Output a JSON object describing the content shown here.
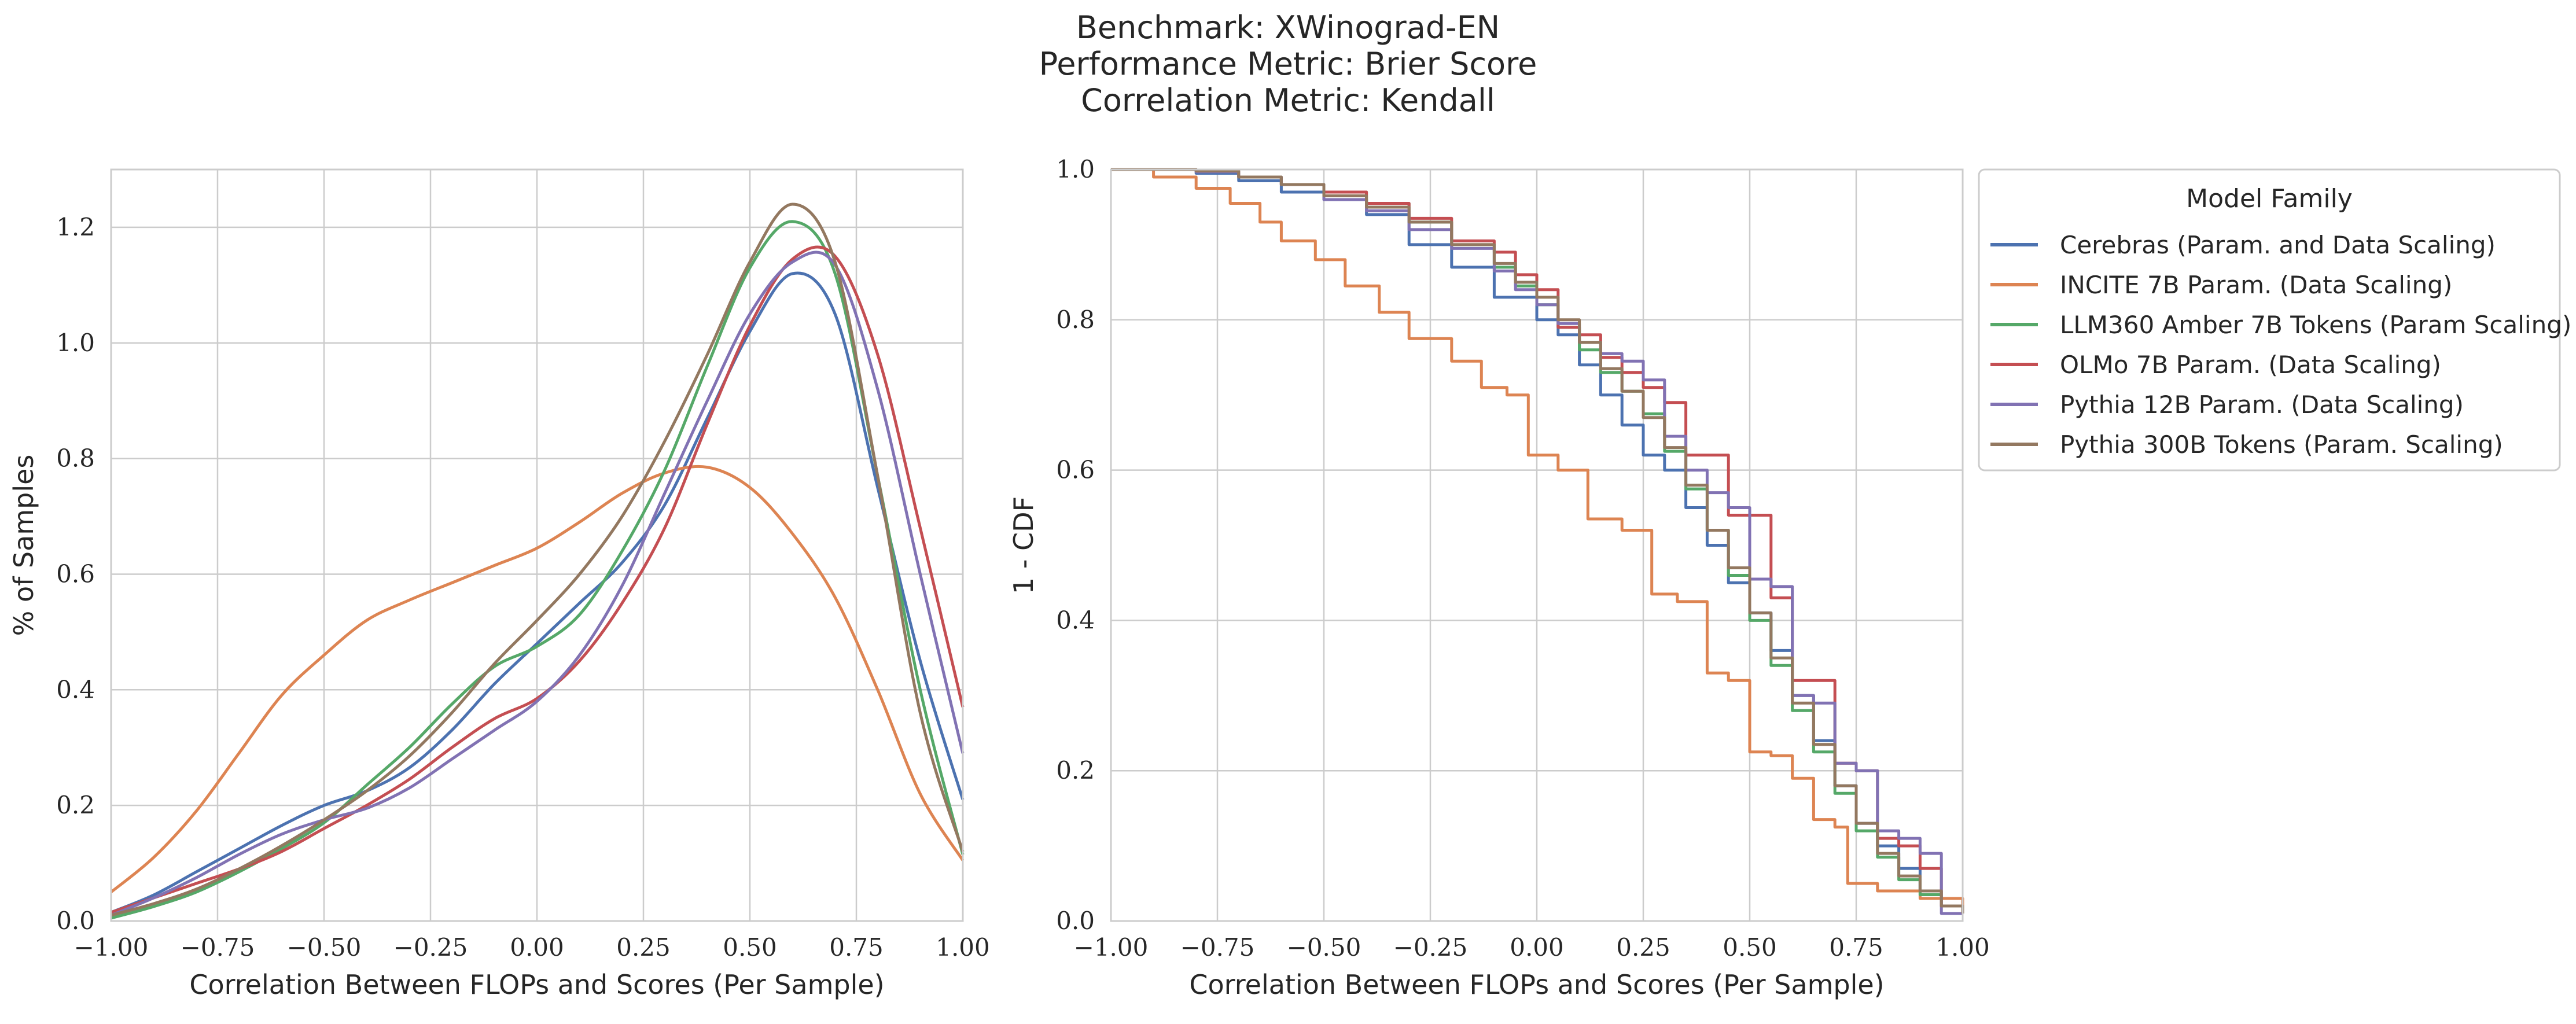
{
  "title_lines": [
    "Benchmark: XWinograd-EN",
    "Performance Metric: Brier Score",
    "Correlation Metric: Kendall"
  ],
  "legend": {
    "title": "Model Family",
    "entries": [
      {
        "label": "Cerebras (Param. and Data Scaling)",
        "color": "#4c72b0"
      },
      {
        "label": "INCITE 7B Param. (Data Scaling)",
        "color": "#dd8452"
      },
      {
        "label": "LLM360 Amber 7B Tokens (Param Scaling)",
        "color": "#55a868"
      },
      {
        "label": "OLMo 7B Param. (Data Scaling)",
        "color": "#c44e52"
      },
      {
        "label": "Pythia 12B Param. (Data Scaling)",
        "color": "#8172b3"
      },
      {
        "label": "Pythia 300B Tokens (Param. Scaling)",
        "color": "#937860"
      }
    ]
  },
  "chart_data": [
    {
      "type": "line",
      "xlabel": "Correlation Between FLOPs and Scores (Per Sample)",
      "ylabel": "% of Samples",
      "xlim": [
        -1.0,
        1.0
      ],
      "ylim": [
        0.0,
        1.3
      ],
      "xticks": [
        -1.0,
        -0.75,
        -0.5,
        -0.25,
        0.0,
        0.25,
        0.5,
        0.75,
        1.0
      ],
      "xtick_labels": [
        "−1.00",
        "−0.75",
        "−0.50",
        "−0.25",
        "0.00",
        "0.25",
        "0.50",
        "0.75",
        "1.00"
      ],
      "yticks": [
        0.0,
        0.2,
        0.4,
        0.6,
        0.8,
        1.0,
        1.2
      ],
      "ytick_labels": [
        "0.0",
        "0.2",
        "0.4",
        "0.6",
        "0.8",
        "1.0",
        "1.2"
      ],
      "grid": true,
      "x": [
        -1.0,
        -0.9,
        -0.8,
        -0.7,
        -0.6,
        -0.5,
        -0.4,
        -0.3,
        -0.2,
        -0.1,
        0.0,
        0.1,
        0.2,
        0.3,
        0.4,
        0.5,
        0.6,
        0.7,
        0.8,
        0.9,
        1.0
      ],
      "series": [
        {
          "name": "Cerebras (Param. and Data Scaling)",
          "color": "#4c72b0",
          "values": [
            0.015,
            0.045,
            0.085,
            0.125,
            0.165,
            0.2,
            0.225,
            0.265,
            0.33,
            0.41,
            0.48,
            0.55,
            0.62,
            0.72,
            0.87,
            1.02,
            1.12,
            1.05,
            0.75,
            0.45,
            0.21
          ]
        },
        {
          "name": "INCITE 7B Param. (Data Scaling)",
          "color": "#dd8452",
          "values": [
            0.05,
            0.11,
            0.19,
            0.29,
            0.39,
            0.46,
            0.52,
            0.555,
            0.585,
            0.615,
            0.645,
            0.69,
            0.74,
            0.775,
            0.785,
            0.75,
            0.67,
            0.56,
            0.4,
            0.22,
            0.105
          ]
        },
        {
          "name": "LLM360 Amber 7B Tokens (Param Scaling)",
          "color": "#55a868",
          "values": [
            0.005,
            0.025,
            0.05,
            0.085,
            0.125,
            0.17,
            0.235,
            0.3,
            0.375,
            0.44,
            0.475,
            0.53,
            0.64,
            0.78,
            0.96,
            1.13,
            1.21,
            1.12,
            0.77,
            0.4,
            0.115
          ]
        },
        {
          "name": "OLMo 7B Param. (Data Scaling)",
          "color": "#c44e52",
          "values": [
            0.015,
            0.04,
            0.065,
            0.09,
            0.12,
            0.16,
            0.2,
            0.245,
            0.3,
            0.35,
            0.385,
            0.45,
            0.55,
            0.68,
            0.86,
            1.03,
            1.145,
            1.15,
            0.98,
            0.68,
            0.37
          ]
        },
        {
          "name": "Pythia 12B Param. (Data Scaling)",
          "color": "#8172b3",
          "values": [
            0.01,
            0.04,
            0.075,
            0.115,
            0.15,
            0.175,
            0.195,
            0.23,
            0.28,
            0.33,
            0.38,
            0.46,
            0.58,
            0.74,
            0.9,
            1.05,
            1.14,
            1.135,
            0.92,
            0.6,
            0.29
          ]
        },
        {
          "name": "Pythia 300B Tokens (Param. Scaling)",
          "color": "#937860",
          "values": [
            0.01,
            0.03,
            0.055,
            0.09,
            0.13,
            0.175,
            0.225,
            0.285,
            0.36,
            0.445,
            0.52,
            0.6,
            0.7,
            0.83,
            0.98,
            1.14,
            1.24,
            1.14,
            0.77,
            0.36,
            0.12
          ]
        }
      ]
    },
    {
      "type": "line",
      "step": true,
      "xlabel": "Correlation Between FLOPs and Scores (Per Sample)",
      "ylabel": "1 - CDF",
      "xlim": [
        -1.0,
        1.0
      ],
      "ylim": [
        0.0,
        1.0
      ],
      "xticks": [
        -1.0,
        -0.75,
        -0.5,
        -0.25,
        0.0,
        0.25,
        0.5,
        0.75,
        1.0
      ],
      "xtick_labels": [
        "−1.00",
        "−0.75",
        "−0.50",
        "−0.25",
        "0.00",
        "0.25",
        "0.50",
        "0.75",
        "1.00"
      ],
      "yticks": [
        0.0,
        0.2,
        0.4,
        0.6,
        0.8,
        1.0
      ],
      "ytick_labels": [
        "0.0",
        "0.2",
        "0.4",
        "0.6",
        "0.8",
        "1.0"
      ],
      "grid": true,
      "legend_position": "outside-right-top",
      "series": [
        {
          "name": "Cerebras (Param. and Data Scaling)",
          "color": "#4c72b0",
          "x": [
            -1.0,
            -0.9,
            -0.8,
            -0.7,
            -0.6,
            -0.5,
            -0.4,
            -0.3,
            -0.2,
            -0.1,
            0.0,
            0.05,
            0.1,
            0.15,
            0.2,
            0.25,
            0.3,
            0.35,
            0.4,
            0.45,
            0.5,
            0.55,
            0.6,
            0.65,
            0.7,
            0.75,
            0.8,
            0.85,
            0.9,
            0.95,
            1.0
          ],
          "values": [
            1.0,
            1.0,
            0.995,
            0.985,
            0.97,
            0.96,
            0.94,
            0.9,
            0.87,
            0.83,
            0.8,
            0.78,
            0.74,
            0.7,
            0.66,
            0.62,
            0.6,
            0.55,
            0.5,
            0.45,
            0.41,
            0.36,
            0.3,
            0.24,
            0.18,
            0.13,
            0.1,
            0.07,
            0.04,
            0.02,
            0.02
          ]
        },
        {
          "name": "INCITE 7B Param. (Data Scaling)",
          "color": "#dd8452",
          "x": [
            -1.0,
            -0.9,
            -0.8,
            -0.72,
            -0.65,
            -0.6,
            -0.52,
            -0.45,
            -0.37,
            -0.3,
            -0.2,
            -0.13,
            -0.07,
            -0.02,
            0.05,
            0.12,
            0.2,
            0.27,
            0.33,
            0.4,
            0.45,
            0.5,
            0.55,
            0.6,
            0.65,
            0.7,
            0.73,
            0.77,
            0.8,
            0.85,
            0.9,
            1.0
          ],
          "values": [
            1.0,
            0.99,
            0.975,
            0.955,
            0.93,
            0.905,
            0.88,
            0.845,
            0.81,
            0.775,
            0.745,
            0.71,
            0.7,
            0.62,
            0.6,
            0.535,
            0.52,
            0.435,
            0.425,
            0.33,
            0.32,
            0.225,
            0.22,
            0.19,
            0.135,
            0.125,
            0.05,
            0.05,
            0.04,
            0.04,
            0.03,
            0.01
          ]
        },
        {
          "name": "LLM360 Amber 7B Tokens (Param Scaling)",
          "color": "#55a868",
          "x": [
            -1.0,
            -0.9,
            -0.8,
            -0.7,
            -0.6,
            -0.5,
            -0.4,
            -0.3,
            -0.2,
            -0.1,
            -0.05,
            0.0,
            0.05,
            0.1,
            0.15,
            0.2,
            0.25,
            0.3,
            0.35,
            0.4,
            0.45,
            0.5,
            0.55,
            0.6,
            0.65,
            0.7,
            0.75,
            0.8,
            0.85,
            0.9,
            0.95,
            1.0
          ],
          "values": [
            1.0,
            1.0,
            0.998,
            0.99,
            0.98,
            0.97,
            0.955,
            0.93,
            0.9,
            0.87,
            0.845,
            0.82,
            0.79,
            0.76,
            0.73,
            0.705,
            0.675,
            0.625,
            0.575,
            0.52,
            0.46,
            0.4,
            0.34,
            0.28,
            0.225,
            0.17,
            0.12,
            0.085,
            0.055,
            0.035,
            0.02,
            0.01
          ]
        },
        {
          "name": "OLMo 7B Param. (Data Scaling)",
          "color": "#c44e52",
          "x": [
            -1.0,
            -0.9,
            -0.8,
            -0.7,
            -0.6,
            -0.5,
            -0.4,
            -0.3,
            -0.2,
            -0.1,
            -0.05,
            0.0,
            0.05,
            0.1,
            0.15,
            0.2,
            0.25,
            0.3,
            0.35,
            0.4,
            0.45,
            0.5,
            0.55,
            0.6,
            0.65,
            0.7,
            0.75,
            0.8,
            0.85,
            0.9,
            0.95,
            1.0
          ],
          "values": [
            1.0,
            1.0,
            0.998,
            0.99,
            0.98,
            0.97,
            0.955,
            0.935,
            0.905,
            0.89,
            0.86,
            0.84,
            0.79,
            0.78,
            0.75,
            0.73,
            0.71,
            0.69,
            0.62,
            0.62,
            0.54,
            0.54,
            0.43,
            0.32,
            0.32,
            0.21,
            0.2,
            0.11,
            0.1,
            0.07,
            0.02,
            0.02
          ]
        },
        {
          "name": "Pythia 12B Param. (Data Scaling)",
          "color": "#8172b3",
          "x": [
            -1.0,
            -0.9,
            -0.8,
            -0.7,
            -0.6,
            -0.5,
            -0.4,
            -0.3,
            -0.2,
            -0.1,
            -0.05,
            0.0,
            0.05,
            0.1,
            0.15,
            0.2,
            0.25,
            0.3,
            0.35,
            0.4,
            0.45,
            0.5,
            0.55,
            0.6,
            0.65,
            0.7,
            0.75,
            0.8,
            0.85,
            0.9,
            0.95,
            1.0
          ],
          "values": [
            1.0,
            1.0,
            0.997,
            0.99,
            0.98,
            0.96,
            0.945,
            0.92,
            0.895,
            0.865,
            0.84,
            0.82,
            0.795,
            0.77,
            0.755,
            0.745,
            0.72,
            0.645,
            0.6,
            0.57,
            0.55,
            0.455,
            0.445,
            0.3,
            0.29,
            0.21,
            0.2,
            0.12,
            0.11,
            0.09,
            0.01,
            0.01
          ]
        },
        {
          "name": "Pythia 300B Tokens (Param. Scaling)",
          "color": "#937860",
          "x": [
            -1.0,
            -0.9,
            -0.8,
            -0.7,
            -0.6,
            -0.5,
            -0.4,
            -0.3,
            -0.2,
            -0.1,
            -0.05,
            0.0,
            0.05,
            0.1,
            0.15,
            0.2,
            0.25,
            0.3,
            0.35,
            0.4,
            0.45,
            0.5,
            0.55,
            0.6,
            0.65,
            0.7,
            0.75,
            0.8,
            0.85,
            0.9,
            0.95,
            1.0
          ],
          "values": [
            1.0,
            1.0,
            0.998,
            0.99,
            0.98,
            0.965,
            0.95,
            0.93,
            0.9,
            0.875,
            0.85,
            0.83,
            0.8,
            0.77,
            0.735,
            0.705,
            0.67,
            0.63,
            0.58,
            0.52,
            0.47,
            0.41,
            0.35,
            0.29,
            0.235,
            0.18,
            0.13,
            0.09,
            0.06,
            0.04,
            0.02,
            0.01
          ]
        }
      ]
    }
  ]
}
